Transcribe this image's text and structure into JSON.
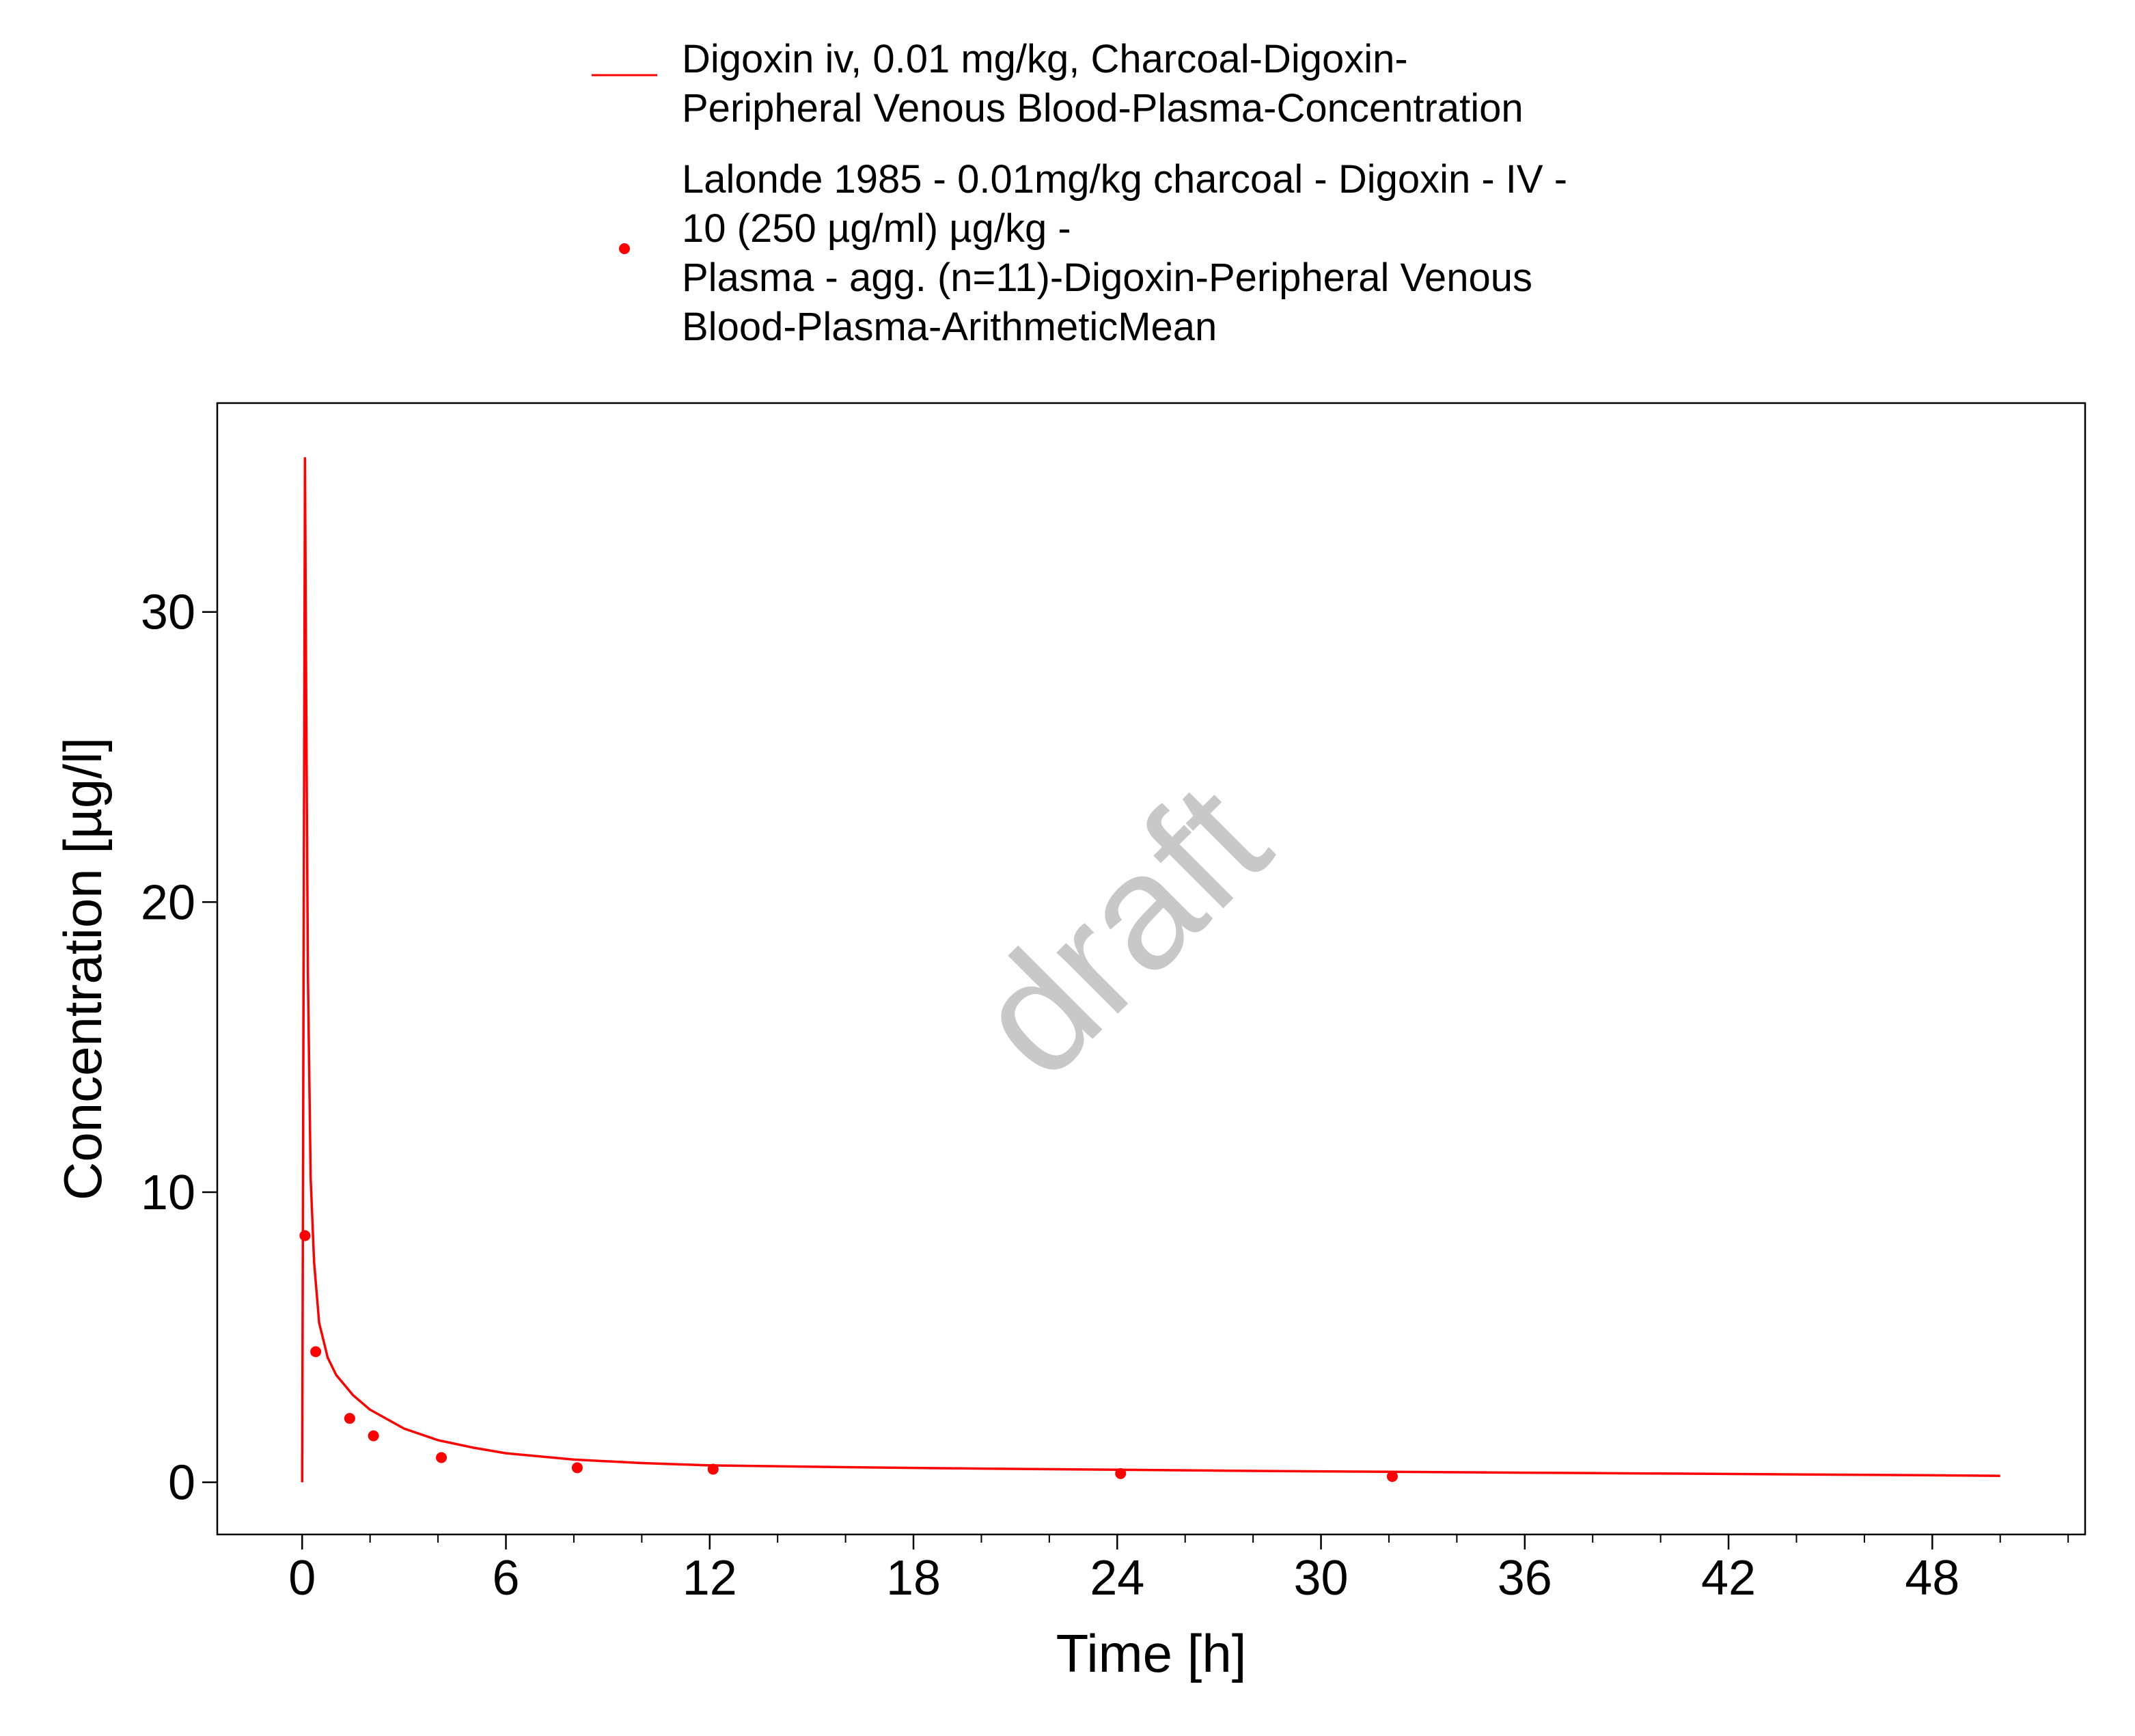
{
  "chart_data": {
    "type": "line",
    "xlabel": "Time [h]",
    "ylabel": "Concentration [µg/l]",
    "xlim": [
      -2.5,
      52.5
    ],
    "ylim": [
      -1.8,
      37.2
    ],
    "xticks": [
      0,
      6,
      12,
      18,
      24,
      30,
      36,
      42,
      48
    ],
    "yticks": [
      0,
      10,
      20,
      30
    ],
    "x_minor_step": 2,
    "grid": false,
    "legend_position": "top-center",
    "watermark": "draft",
    "series": [
      {
        "name": "Digoxin iv, 0.01 mg/kg, Charcoal-Digoxin-Peripheral Venous Blood-Plasma-Concentration",
        "legend_lines": [
          "Digoxin iv, 0.01 mg/kg, Charcoal-Digoxin-",
          "Peripheral Venous Blood-Plasma-Concentration"
        ],
        "kind": "line",
        "color": "#ff0000",
        "x": [
          0,
          0.083,
          0.12,
          0.17,
          0.25,
          0.35,
          0.5,
          0.75,
          1,
          1.5,
          2,
          3,
          4,
          5,
          6,
          8,
          10,
          12,
          16,
          20,
          24,
          28,
          32,
          36,
          40,
          44,
          48,
          50
        ],
        "y": [
          0,
          35.3,
          27.0,
          17.5,
          10.5,
          7.6,
          5.5,
          4.3,
          3.7,
          3.0,
          2.5,
          1.85,
          1.45,
          1.2,
          1.0,
          0.78,
          0.66,
          0.58,
          0.52,
          0.47,
          0.43,
          0.39,
          0.36,
          0.33,
          0.3,
          0.27,
          0.24,
          0.22
        ]
      },
      {
        "name": "Lalonde 1985 - 0.01mg/kg charcoal - Digoxin - IV - 10 (250 µg/ml) µg/kg - Plasma - agg. (n=11)-Digoxin-Peripheral Venous Blood-Plasma-ArithmeticMean",
        "legend_lines": [
          "Lalonde 1985 - 0.01mg/kg charcoal - Digoxin - IV -",
          "10 (250 µg/ml) µg/kg -",
          "Plasma - agg. (n=11)-Digoxin-Peripheral Venous",
          "Blood-Plasma-ArithmeticMean"
        ],
        "kind": "scatter",
        "color": "#ff0000",
        "x": [
          0.083,
          0.4,
          1.4,
          2.1,
          4.1,
          8.1,
          12.1,
          24.1,
          32.1
        ],
        "y": [
          8.5,
          4.5,
          2.2,
          1.6,
          0.85,
          0.5,
          0.45,
          0.3,
          0.2
        ]
      }
    ]
  }
}
